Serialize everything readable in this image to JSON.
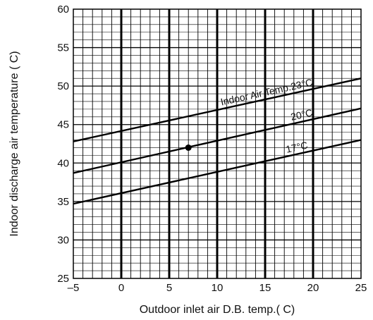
{
  "chart_data": {
    "type": "line",
    "title": "",
    "xlabel": "Outdoor inlet air D.B. temp.( C)",
    "ylabel": "Indoor discharge air temperature ( C)",
    "xlim": [
      -5,
      25
    ],
    "ylim": [
      25,
      60
    ],
    "x_ticks": [
      "–5",
      "0",
      "5",
      "10",
      "15",
      "20",
      "25"
    ],
    "y_ticks": [
      "25",
      "30",
      "35",
      "40",
      "45",
      "50",
      "55",
      "60"
    ],
    "grid": true,
    "series": [
      {
        "name": "Indoor Air Temp.23°C",
        "x": [
          -5,
          25
        ],
        "y": [
          42.8,
          51.0
        ]
      },
      {
        "name": "20°C",
        "x": [
          -5,
          25
        ],
        "y": [
          38.7,
          47.1
        ]
      },
      {
        "name": "17°C",
        "x": [
          -5,
          25
        ],
        "y": [
          34.7,
          43.0
        ]
      }
    ],
    "points": [
      {
        "x": 7,
        "y": 42
      }
    ],
    "legend": "inline"
  }
}
